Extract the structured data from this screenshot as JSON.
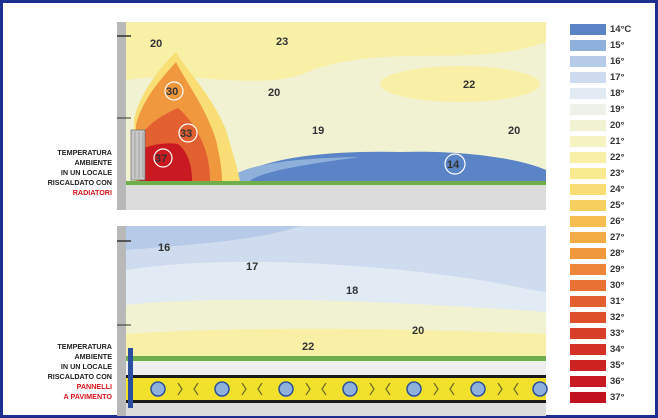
{
  "panels": [
    {
      "label_lines": [
        "Temperatura",
        "ambiente",
        "in un locale",
        "riscaldato con"
      ],
      "label_highlight": [
        "Radiatori"
      ],
      "values": [
        "20",
        "23",
        "30",
        "20",
        "22",
        "33",
        "19",
        "20",
        "37",
        "14"
      ]
    },
    {
      "label_lines": [
        "Temperatura",
        "ambiente",
        "in un locale",
        "riscaldato con"
      ],
      "label_highlight": [
        "Pannelli",
        "a pavimento"
      ],
      "values": [
        "16",
        "17",
        "18",
        "20",
        "22"
      ]
    }
  ],
  "scale": {
    "labels": [
      "14°C",
      "15°",
      "16°",
      "17°",
      "18°",
      "19°",
      "20°",
      "21°",
      "22°",
      "23°",
      "24°",
      "25°",
      "26°",
      "27°",
      "28°",
      "29°",
      "30°",
      "31°",
      "32°",
      "33°",
      "34°",
      "35°",
      "36°",
      "37°"
    ],
    "colors": [
      "#5b84c7",
      "#8fb0da",
      "#b5cbe8",
      "#cfdcef",
      "#e2eaf4",
      "#eef1ea",
      "#f1f2d2",
      "#f5f3bf",
      "#f7f0a6",
      "#f8ea8e",
      "#f8de74",
      "#f7cf5e",
      "#f5be4f",
      "#f2ab45",
      "#ef983e",
      "#ec8539",
      "#e87234",
      "#e36030",
      "#de4f2c",
      "#d83f28",
      "#d33125",
      "#cd2422",
      "#c81a20",
      "#c2121e"
    ]
  }
}
